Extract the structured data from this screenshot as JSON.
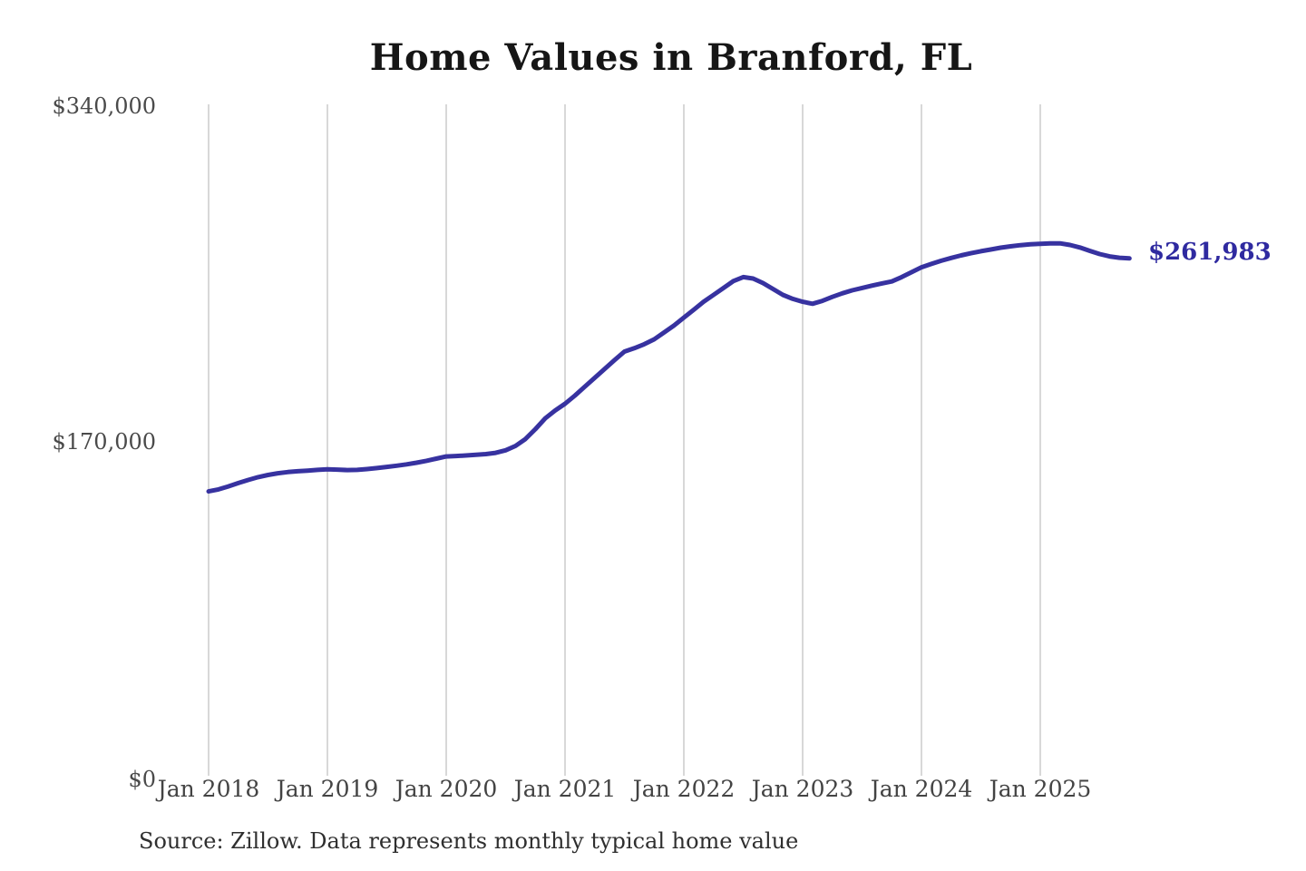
{
  "title": "Home Values in Branford, FL",
  "source_note": "Source: Zillow. Data represents monthly typical home value",
  "y_axis": {
    "ticks": [
      "$340,000",
      "$170,000",
      "$0"
    ]
  },
  "x_axis": {
    "ticks": [
      "Jan 2018",
      "Jan 2019",
      "Jan 2020",
      "Jan 2021",
      "Jan 2022",
      "Jan 2023",
      "Jan 2024",
      "Jan 2025"
    ]
  },
  "line": {
    "end_label": "$261,983",
    "color": "#3732a0"
  },
  "grid": {
    "color": "#cbcbcb"
  },
  "colors": {
    "background": "#ffffff",
    "title_text": "#161616",
    "axis_text": "#474747",
    "source_text": "#2f2f2f",
    "accent": "#3732a0"
  },
  "chart_data": {
    "type": "line",
    "title": "Home Values in Branford, FL",
    "series_name": "Monthly typical home value",
    "xlabel": "",
    "ylabel": "",
    "ylim": [
      0,
      340000
    ],
    "y_tick_values": [
      0,
      170000,
      340000
    ],
    "grid": "vertical-only",
    "legend": "none",
    "last_value": 261983,
    "x": [
      "2018-01",
      "2018-02",
      "2018-03",
      "2018-04",
      "2018-05",
      "2018-06",
      "2018-07",
      "2018-08",
      "2018-09",
      "2018-10",
      "2018-11",
      "2018-12",
      "2019-01",
      "2019-02",
      "2019-03",
      "2019-04",
      "2019-05",
      "2019-06",
      "2019-07",
      "2019-08",
      "2019-09",
      "2019-10",
      "2019-11",
      "2019-12",
      "2020-01",
      "2020-02",
      "2020-03",
      "2020-04",
      "2020-05",
      "2020-06",
      "2020-07",
      "2020-08",
      "2020-09",
      "2020-10",
      "2020-11",
      "2020-12",
      "2021-01",
      "2021-02",
      "2021-03",
      "2021-04",
      "2021-05",
      "2021-06",
      "2021-07",
      "2021-08",
      "2021-09",
      "2021-10",
      "2021-11",
      "2021-12",
      "2022-01",
      "2022-02",
      "2022-03",
      "2022-04",
      "2022-05",
      "2022-06",
      "2022-07",
      "2022-08",
      "2022-09",
      "2022-10",
      "2022-11",
      "2022-12",
      "2023-01",
      "2023-02",
      "2023-03",
      "2023-04",
      "2023-05",
      "2023-06",
      "2023-07",
      "2023-08",
      "2023-09",
      "2023-10",
      "2023-11",
      "2023-12",
      "2024-01",
      "2024-02",
      "2024-03",
      "2024-04",
      "2024-05",
      "2024-06",
      "2024-07",
      "2024-08",
      "2024-09",
      "2024-10",
      "2024-11",
      "2024-12",
      "2025-01",
      "2025-02",
      "2025-03",
      "2025-04",
      "2025-05",
      "2025-06",
      "2025-07",
      "2025-08",
      "2025-09",
      "2025-10"
    ],
    "values": [
      144000,
      145000,
      146500,
      148200,
      149800,
      151200,
      152300,
      153200,
      153800,
      154200,
      154500,
      154900,
      155200,
      155000,
      154800,
      154900,
      155300,
      155800,
      156400,
      157000,
      157700,
      158500,
      159500,
      160600,
      161700,
      161900,
      162200,
      162500,
      162900,
      163500,
      164800,
      167000,
      170500,
      175500,
      181000,
      185000,
      188400,
      192500,
      197000,
      201500,
      206000,
      210500,
      214800,
      216500,
      218500,
      221000,
      224500,
      228000,
      232000,
      236000,
      240000,
      243500,
      247000,
      250500,
      252500,
      251800,
      249500,
      246500,
      243500,
      241500,
      240000,
      239000,
      240500,
      242500,
      244300,
      245800,
      247000,
      248200,
      249300,
      250300,
      252500,
      255000,
      257500,
      259200,
      260800,
      262200,
      263500,
      264600,
      265600,
      266500,
      267400,
      268100,
      268700,
      269100,
      269400,
      269600,
      269600,
      268800,
      267500,
      265800,
      264200,
      263000,
      262300,
      261983
    ]
  }
}
